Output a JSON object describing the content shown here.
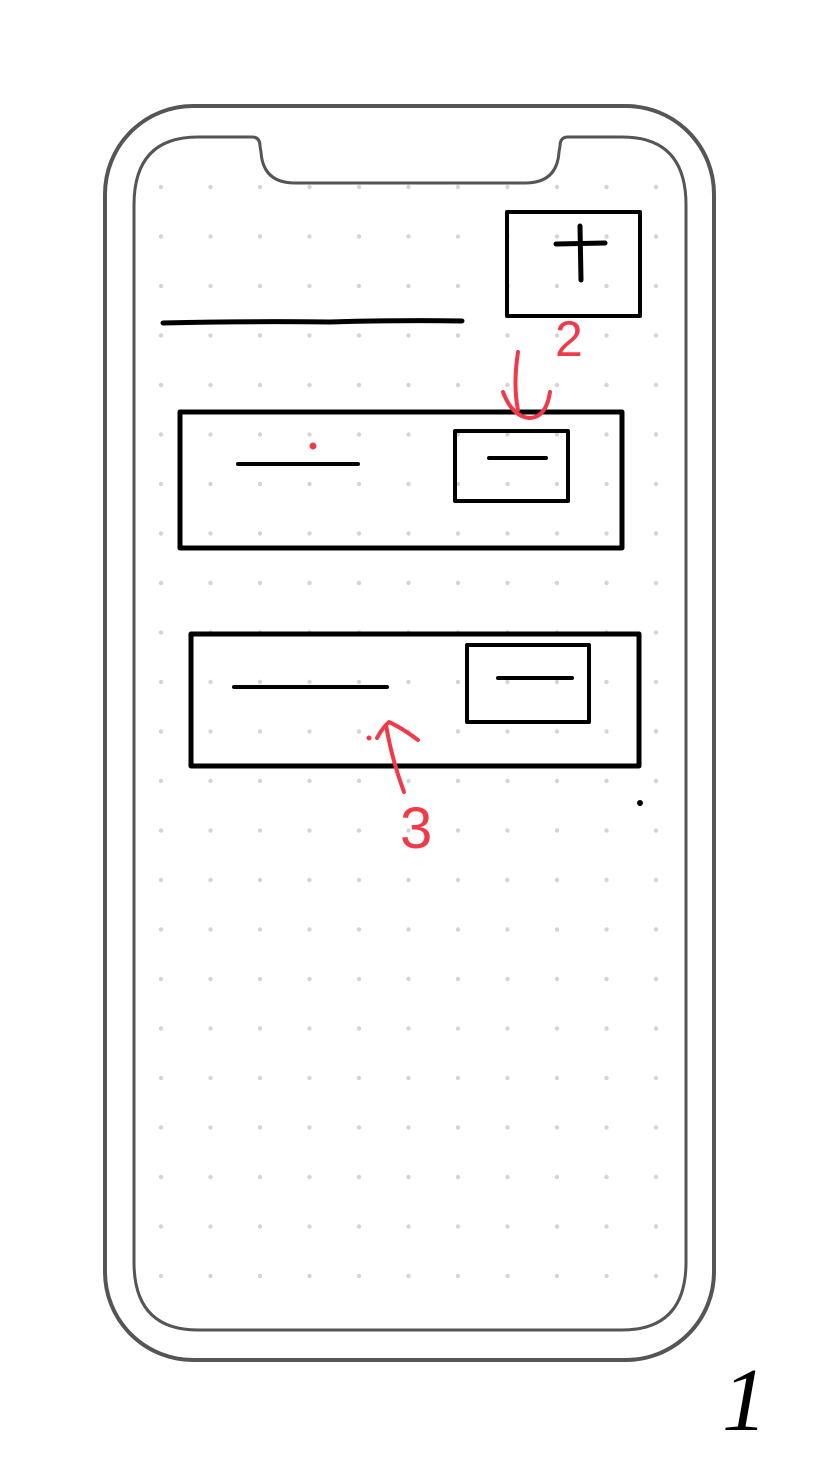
{
  "colors": {
    "ink": "#000000",
    "annotation": "#f03a4a",
    "frame": "#555555",
    "grid_dot": "#d4d4d4",
    "background": "#ffffff"
  },
  "sketch": {
    "page_number": "1",
    "device": "phone-frame",
    "header": {
      "title_placeholder": "line",
      "add_button_icon": "plus-icon"
    },
    "cards": [
      {
        "label_placeholder": "line",
        "button_placeholder": "line"
      },
      {
        "label_placeholder": "line",
        "button_placeholder": "line"
      }
    ],
    "annotations": [
      {
        "number": "2",
        "points_to": "first-card-button"
      },
      {
        "number": "3",
        "points_to": "second-card-label"
      }
    ]
  }
}
